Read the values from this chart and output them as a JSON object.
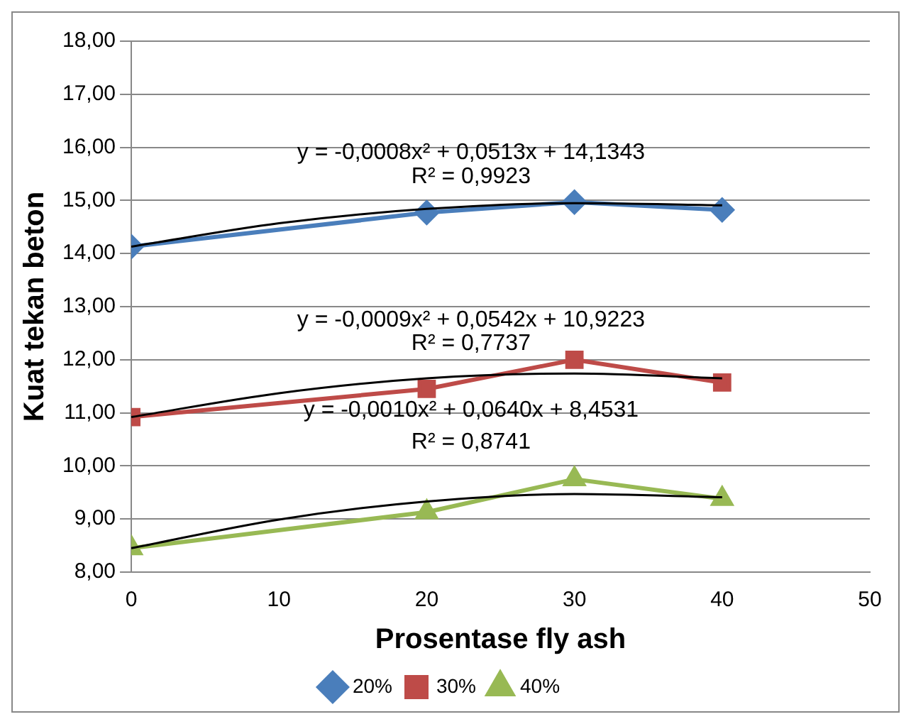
{
  "chart_data": {
    "type": "line",
    "xlabel": "Prosentase fly ash",
    "ylabel": "Kuat tekan beton",
    "x": [
      0,
      20,
      30,
      40
    ],
    "series": [
      {
        "name": "20%",
        "color": "#4a7ebb",
        "marker": "diamond",
        "values": [
          14.13,
          14.77,
          14.97,
          14.82
        ]
      },
      {
        "name": "30%",
        "color": "#be4b48",
        "marker": "square",
        "values": [
          10.92,
          11.45,
          12.0,
          11.57
        ]
      },
      {
        "name": "40%",
        "color": "#98b954",
        "marker": "triangle",
        "values": [
          8.45,
          9.13,
          9.75,
          9.38
        ]
      },
      {
        "type": "line",
        "color": "#000000",
        "marker": "none",
        "x": [
          0,
          10,
          20,
          30,
          40
        ],
        "values": [
          14.13,
          14.57,
          14.84,
          14.95,
          14.91
        ]
      },
      {
        "type": "line",
        "color": "#000000",
        "marker": "none",
        "x": [
          0,
          10,
          20,
          30,
          40
        ],
        "values": [
          10.92,
          11.37,
          11.65,
          11.74,
          11.65
        ]
      },
      {
        "type": "line",
        "color": "#000000",
        "marker": "none",
        "x": [
          0,
          10,
          20,
          30,
          40
        ],
        "values": [
          8.45,
          8.99,
          9.33,
          9.47,
          9.41
        ]
      }
    ],
    "xlim": [
      0,
      50
    ],
    "xticks": [
      0,
      10,
      20,
      30,
      40,
      50
    ],
    "ylim": [
      8,
      18
    ],
    "yticks": [
      {
        "value": 8,
        "label": "8,00"
      },
      {
        "value": 9,
        "label": "9,00"
      },
      {
        "value": 10,
        "label": "10,00"
      },
      {
        "value": 11,
        "label": "11,00"
      },
      {
        "value": 12,
        "label": "12,00"
      },
      {
        "value": 13,
        "label": "13,00"
      },
      {
        "value": 14,
        "label": "14,00"
      },
      {
        "value": 15,
        "label": "15,00"
      },
      {
        "value": 16,
        "label": "16,00"
      },
      {
        "value": 17,
        "label": "17,00"
      },
      {
        "value": 18,
        "label": "18,00"
      }
    ],
    "grid": "y",
    "legend": "bottom",
    "annotations": [
      "y = -0,0008x² + 0,0513x + 14,1343",
      "R² = 0,9923",
      "y = -0,0009x² + 0,0542x + 10,9223",
      "R² = 0,7737",
      "y = -0,0010x² + 0,0640x + 8,4531",
      "R² = 0,8741"
    ]
  }
}
